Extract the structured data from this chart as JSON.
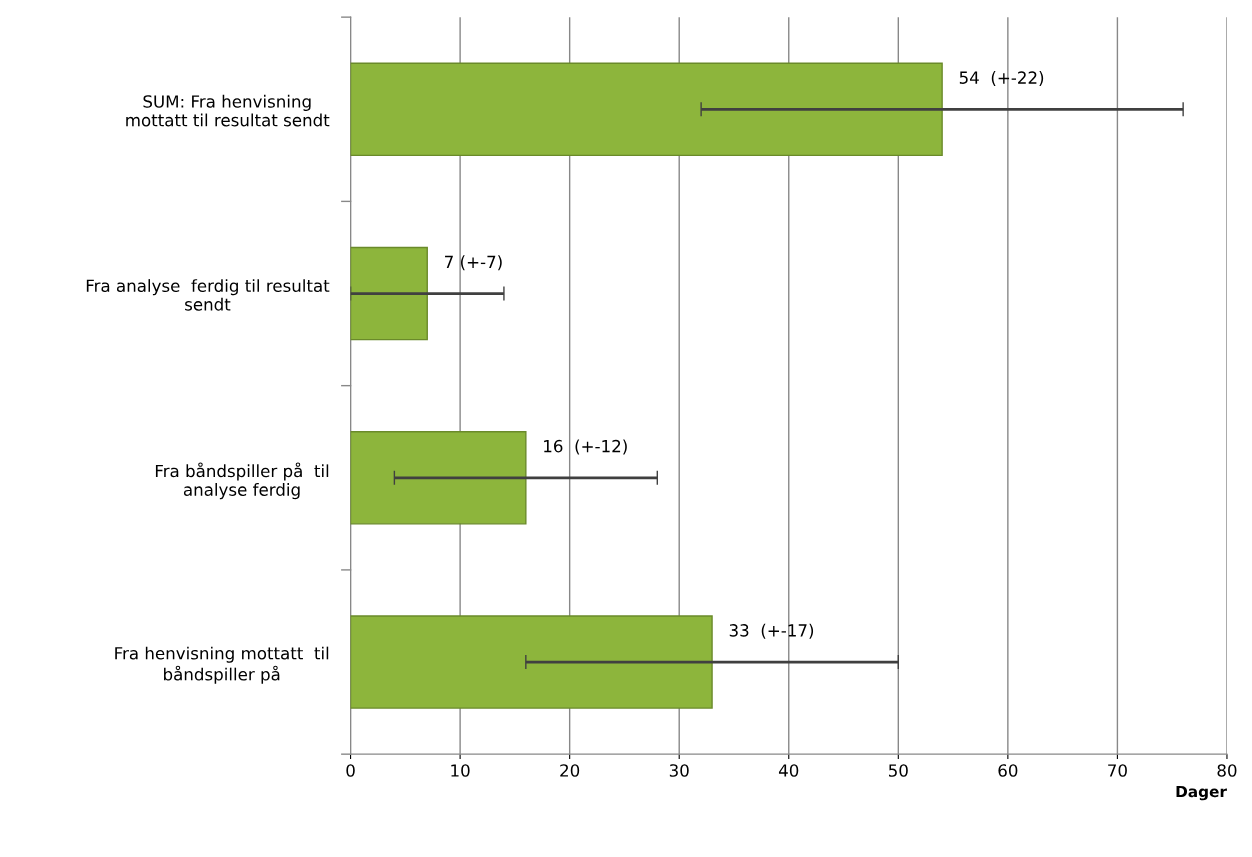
{
  "chart_data": {
    "type": "bar",
    "orientation": "horizontal",
    "xlabel": "Dager",
    "categories": [
      "SUM: Fra henvisning\nmottatt til resultat sendt",
      "Fra analyse  ferdig til resultat\nsendt",
      "Fra båndspiller på  til\nanalyse ferdig",
      "Fra henvisning mottatt  til\nbåndspiller på"
    ],
    "values": [
      54,
      7,
      16,
      33
    ],
    "errors": [
      22,
      7,
      12,
      17
    ],
    "value_labels": [
      "54  (+-22)",
      "7 (+-7)",
      "16  (+-12)",
      "33  (+-17)"
    ],
    "color": "#8db53c",
    "xlim": [
      0,
      80
    ],
    "xticks": [
      0,
      10,
      20,
      30,
      40,
      50,
      60,
      70,
      80
    ],
    "grid": "x"
  }
}
